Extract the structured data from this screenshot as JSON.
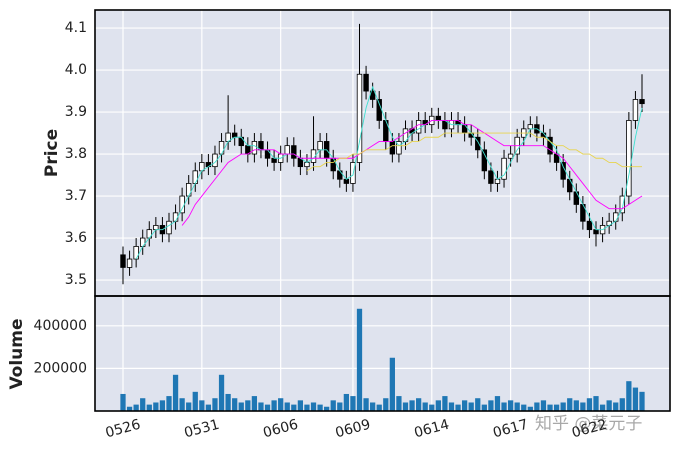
{
  "chart_data": {
    "type": "candlestick",
    "categories": [
      "0526",
      null,
      null,
      null,
      null,
      null,
      null,
      null,
      null,
      null,
      null,
      null,
      "0531",
      null,
      null,
      null,
      null,
      null,
      null,
      null,
      null,
      null,
      null,
      null,
      "0606",
      null,
      null,
      null,
      null,
      null,
      null,
      null,
      null,
      null,
      null,
      "0609",
      null,
      null,
      null,
      null,
      null,
      null,
      null,
      null,
      null,
      null,
      null,
      "0614",
      null,
      null,
      null,
      null,
      null,
      null,
      null,
      null,
      null,
      null,
      null,
      "0617",
      null,
      null,
      null,
      null,
      null,
      null,
      null,
      null,
      null,
      null,
      null,
      "0622",
      null,
      null,
      null,
      null,
      null,
      null,
      null,
      null
    ],
    "open": [
      3.56,
      3.53,
      3.55,
      3.58,
      3.6,
      3.62,
      3.63,
      3.61,
      3.64,
      3.66,
      3.7,
      3.73,
      3.76,
      3.78,
      3.77,
      3.8,
      3.83,
      3.85,
      3.84,
      3.82,
      3.8,
      3.83,
      3.81,
      3.79,
      3.78,
      3.8,
      3.82,
      3.79,
      3.77,
      3.78,
      3.81,
      3.83,
      3.79,
      3.76,
      3.74,
      3.73,
      3.78,
      3.99,
      3.95,
      3.93,
      3.88,
      3.83,
      3.8,
      3.83,
      3.86,
      3.85,
      3.88,
      3.87,
      3.89,
      3.88,
      3.86,
      3.88,
      3.87,
      3.85,
      3.84,
      3.81,
      3.76,
      3.73,
      3.74,
      3.79,
      3.8,
      3.84,
      3.86,
      3.87,
      3.85,
      3.84,
      3.8,
      3.78,
      3.74,
      3.71,
      3.68,
      3.64,
      3.62,
      3.61,
      3.63,
      3.64,
      3.66,
      3.7,
      3.88,
      3.93
    ],
    "high": [
      3.58,
      3.57,
      3.6,
      3.62,
      3.64,
      3.65,
      3.65,
      3.66,
      3.68,
      3.72,
      3.75,
      3.78,
      3.8,
      3.8,
      3.82,
      3.85,
      3.94,
      3.87,
      3.86,
      3.84,
      3.85,
      3.85,
      3.83,
      3.81,
      3.82,
      3.84,
      3.84,
      3.81,
      3.8,
      3.89,
      3.85,
      3.85,
      3.81,
      3.78,
      3.76,
      3.8,
      4.11,
      4.01,
      3.97,
      3.95,
      3.9,
      3.85,
      3.85,
      3.88,
      3.88,
      3.9,
      3.9,
      3.91,
      3.91,
      3.9,
      3.9,
      3.9,
      3.89,
      3.87,
      3.86,
      3.83,
      3.78,
      3.76,
      3.81,
      3.82,
      3.86,
      3.88,
      3.89,
      3.89,
      3.87,
      3.86,
      3.82,
      3.8,
      3.76,
      3.73,
      3.7,
      3.66,
      3.64,
      3.65,
      3.66,
      3.68,
      3.72,
      3.9,
      3.95,
      3.99
    ],
    "low": [
      3.49,
      3.51,
      3.53,
      3.56,
      3.58,
      3.6,
      3.59,
      3.59,
      3.62,
      3.64,
      3.68,
      3.71,
      3.74,
      3.75,
      3.75,
      3.78,
      3.81,
      3.82,
      3.8,
      3.78,
      3.78,
      3.79,
      3.77,
      3.76,
      3.76,
      3.78,
      3.77,
      3.75,
      3.75,
      3.76,
      3.79,
      3.77,
      3.74,
      3.72,
      3.71,
      3.71,
      3.76,
      3.93,
      3.91,
      3.86,
      3.81,
      3.78,
      3.78,
      3.81,
      3.83,
      3.83,
      3.85,
      3.85,
      3.86,
      3.84,
      3.84,
      3.85,
      3.83,
      3.82,
      3.79,
      3.74,
      3.71,
      3.71,
      3.72,
      3.77,
      3.78,
      3.82,
      3.84,
      3.83,
      3.82,
      3.78,
      3.76,
      3.72,
      3.69,
      3.66,
      3.62,
      3.6,
      3.58,
      3.59,
      3.61,
      3.62,
      3.64,
      3.68,
      3.86,
      3.9
    ],
    "close": [
      3.53,
      3.55,
      3.58,
      3.6,
      3.62,
      3.63,
      3.61,
      3.64,
      3.66,
      3.7,
      3.73,
      3.76,
      3.78,
      3.77,
      3.8,
      3.83,
      3.85,
      3.84,
      3.82,
      3.8,
      3.83,
      3.81,
      3.79,
      3.78,
      3.8,
      3.82,
      3.79,
      3.77,
      3.78,
      3.81,
      3.83,
      3.79,
      3.76,
      3.74,
      3.73,
      3.78,
      3.99,
      3.95,
      3.93,
      3.88,
      3.83,
      3.8,
      3.83,
      3.86,
      3.85,
      3.88,
      3.87,
      3.89,
      3.88,
      3.86,
      3.88,
      3.87,
      3.85,
      3.84,
      3.81,
      3.76,
      3.73,
      3.74,
      3.79,
      3.8,
      3.84,
      3.86,
      3.87,
      3.85,
      3.84,
      3.8,
      3.78,
      3.74,
      3.71,
      3.68,
      3.64,
      3.62,
      3.61,
      3.63,
      3.64,
      3.66,
      3.7,
      3.88,
      3.93,
      3.92
    ],
    "up_color": "#ffffff",
    "down_color": "#000000",
    "moving_averages": [
      {
        "color": "#40e0d0",
        "values": [
          null,
          null,
          3.55,
          3.58,
          3.6,
          3.62,
          3.62,
          3.63,
          3.64,
          3.67,
          3.7,
          3.73,
          3.76,
          3.77,
          3.78,
          3.8,
          3.83,
          3.84,
          3.84,
          3.82,
          3.82,
          3.81,
          3.81,
          3.79,
          3.79,
          3.8,
          3.8,
          3.79,
          3.78,
          3.79,
          3.81,
          3.81,
          3.79,
          3.76,
          3.74,
          3.75,
          3.83,
          3.91,
          3.96,
          3.92,
          3.88,
          3.84,
          3.82,
          3.83,
          3.85,
          3.86,
          3.87,
          3.88,
          3.88,
          3.88,
          3.87,
          3.87,
          3.87,
          3.85,
          3.83,
          3.8,
          3.77,
          3.74,
          3.75,
          3.78,
          3.81,
          3.83,
          3.86,
          3.86,
          3.85,
          3.83,
          3.81,
          3.77,
          3.74,
          3.71,
          3.68,
          3.65,
          3.62,
          3.62,
          3.63,
          3.64,
          3.67,
          3.75,
          3.84,
          3.91
        ]
      },
      {
        "color": "#ff00ff",
        "values": [
          null,
          null,
          null,
          null,
          null,
          null,
          null,
          null,
          null,
          3.63,
          3.65,
          3.68,
          3.7,
          3.72,
          3.74,
          3.76,
          3.78,
          3.79,
          3.8,
          3.8,
          3.81,
          3.81,
          3.81,
          3.81,
          3.8,
          3.8,
          3.8,
          3.79,
          3.79,
          3.79,
          3.79,
          3.79,
          3.79,
          3.79,
          3.79,
          3.79,
          3.8,
          3.81,
          3.82,
          3.83,
          3.83,
          3.83,
          3.84,
          3.85,
          3.86,
          3.87,
          3.87,
          3.88,
          3.88,
          3.88,
          3.88,
          3.88,
          3.87,
          3.87,
          3.86,
          3.85,
          3.84,
          3.83,
          3.82,
          3.82,
          3.82,
          3.82,
          3.82,
          3.82,
          3.82,
          3.81,
          3.8,
          3.79,
          3.77,
          3.75,
          3.73,
          3.71,
          3.69,
          3.68,
          3.67,
          3.67,
          3.67,
          3.68,
          3.69,
          3.7
        ]
      },
      {
        "color": "#e8d44d",
        "values": [
          null,
          null,
          null,
          null,
          null,
          null,
          null,
          null,
          null,
          null,
          null,
          null,
          null,
          null,
          null,
          null,
          null,
          null,
          null,
          null,
          null,
          null,
          null,
          null,
          null,
          null,
          null,
          null,
          3.76,
          3.77,
          3.77,
          3.78,
          3.78,
          3.79,
          3.79,
          3.8,
          3.8,
          3.81,
          3.81,
          3.81,
          3.81,
          3.82,
          3.82,
          3.82,
          3.83,
          3.83,
          3.84,
          3.84,
          3.84,
          3.85,
          3.85,
          3.85,
          3.85,
          3.85,
          3.85,
          3.85,
          3.85,
          3.85,
          3.85,
          3.85,
          3.85,
          3.85,
          3.85,
          3.84,
          3.84,
          3.83,
          3.82,
          3.82,
          3.81,
          3.81,
          3.8,
          3.8,
          3.79,
          3.79,
          3.78,
          3.78,
          3.77,
          3.77,
          3.77,
          3.77
        ]
      }
    ],
    "ylabel": "Price",
    "ylim": [
      3.462,
      4.143
    ],
    "yticks": [
      3.5,
      3.6,
      3.7,
      3.8,
      3.9,
      {
        "value": 4,
        "label": "4.0"
      },
      4.1
    ],
    "grid": true,
    "volume": {
      "ylabel": "Volume",
      "color": "#1f77b4",
      "values": [
        80000,
        20000,
        30000,
        60000,
        30000,
        40000,
        50000,
        70000,
        170000,
        60000,
        40000,
        90000,
        50000,
        30000,
        60000,
        170000,
        80000,
        60000,
        40000,
        50000,
        70000,
        40000,
        30000,
        50000,
        60000,
        40000,
        30000,
        50000,
        30000,
        40000,
        30000,
        20000,
        50000,
        40000,
        80000,
        70000,
        480000,
        60000,
        40000,
        30000,
        60000,
        250000,
        70000,
        40000,
        50000,
        60000,
        40000,
        30000,
        50000,
        70000,
        40000,
        30000,
        50000,
        40000,
        60000,
        30000,
        50000,
        70000,
        40000,
        50000,
        40000,
        30000,
        20000,
        40000,
        50000,
        30000,
        30000,
        40000,
        60000,
        50000,
        40000,
        60000,
        70000,
        30000,
        50000,
        40000,
        60000,
        140000,
        110000,
        90000
      ],
      "ylim": [
        0,
        540000
      ],
      "yticks": [
        200000,
        400000
      ]
    },
    "watermark": "知乎 @菜元子"
  }
}
